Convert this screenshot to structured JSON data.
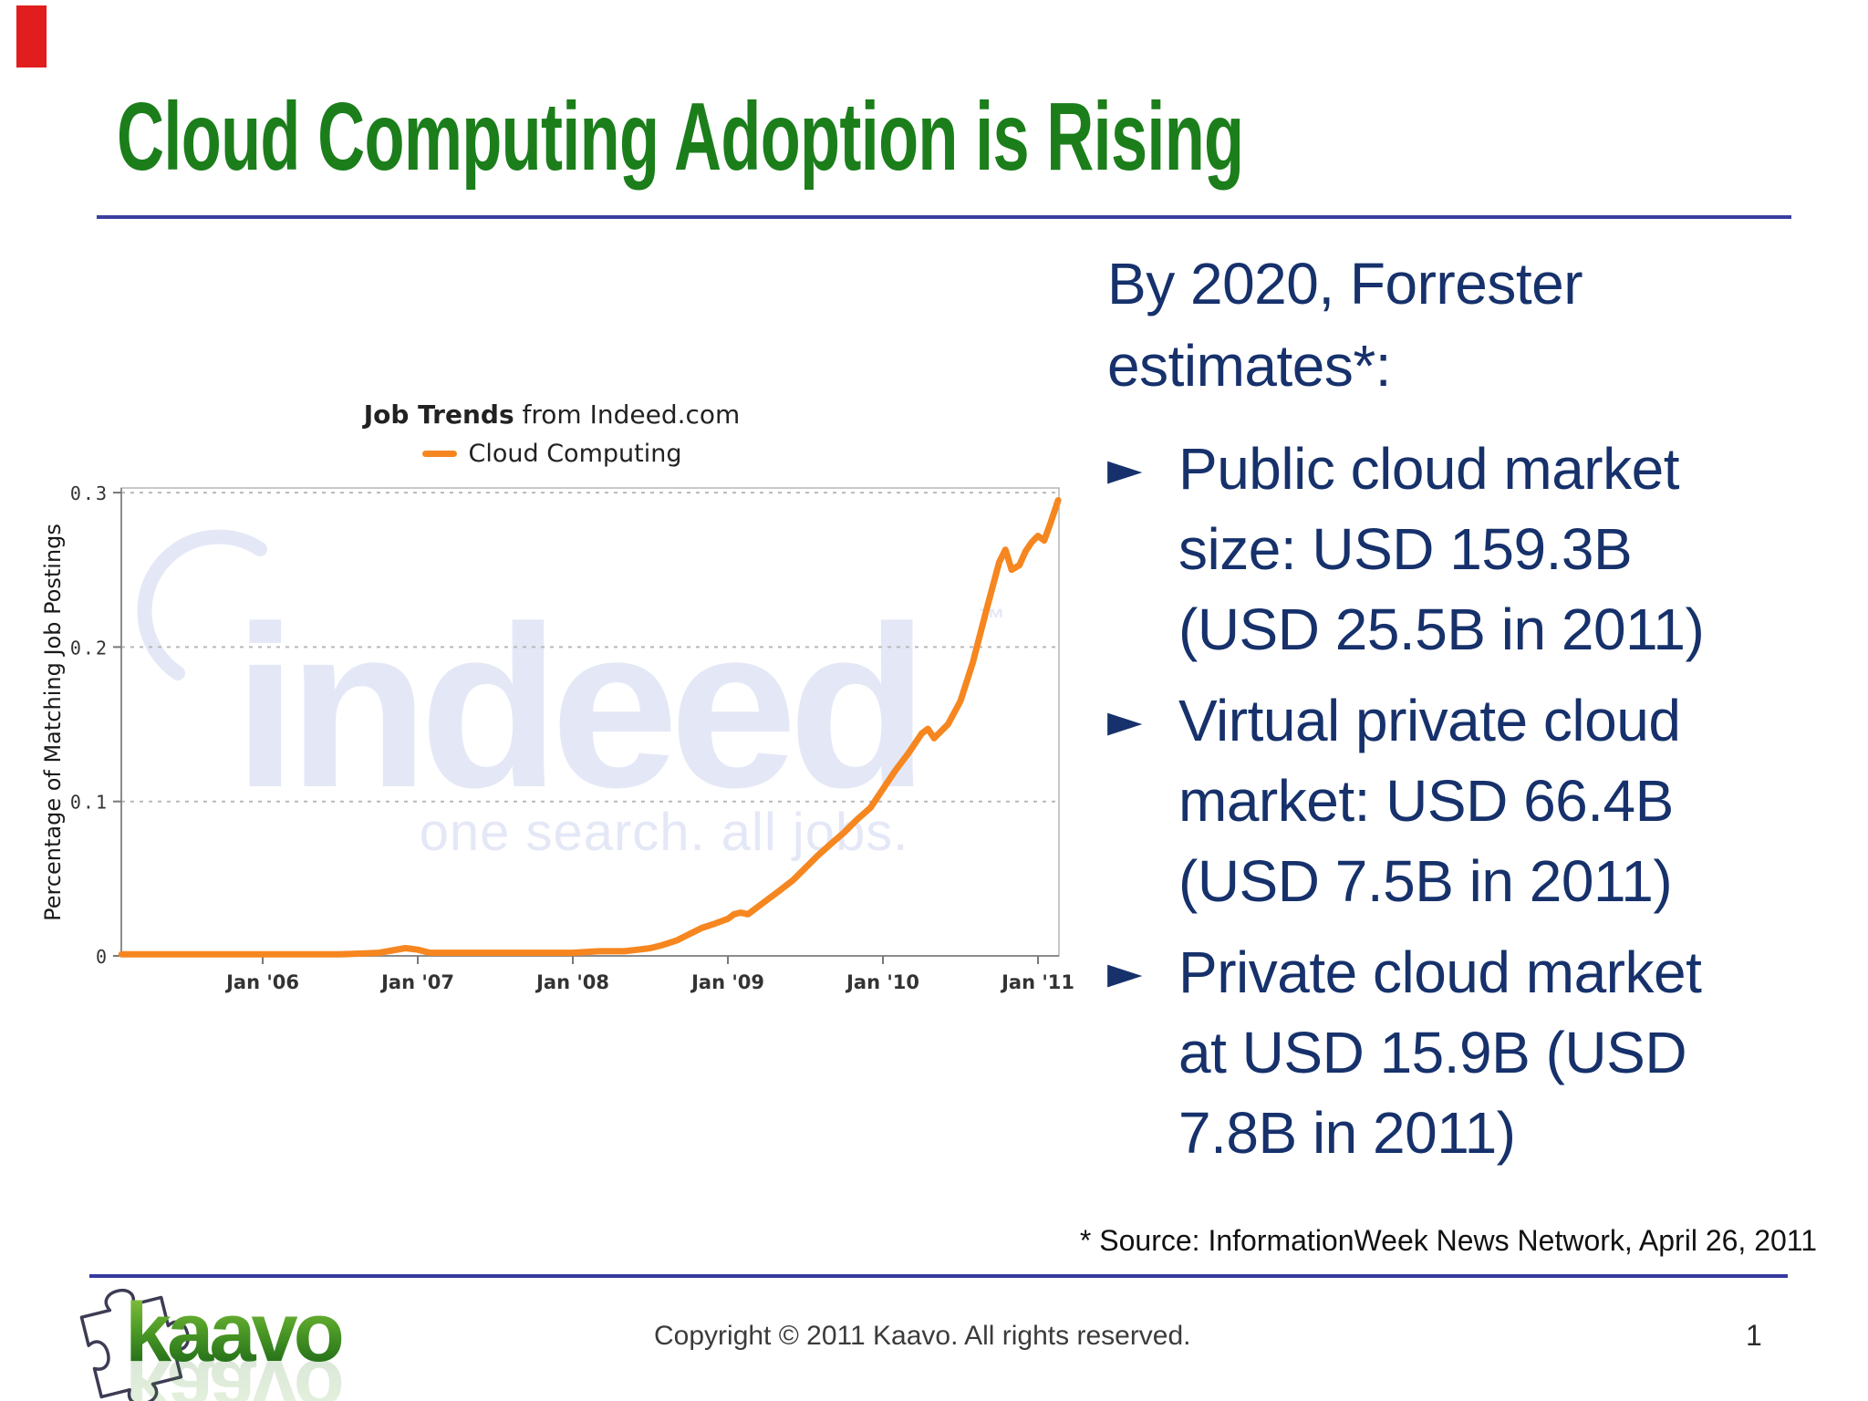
{
  "colors": {
    "title_green": "#1b7e1b",
    "navy_text": "#16316b",
    "divider_blue": "#3a3f9e",
    "accent_red": "#e11d1d",
    "line_orange": "#f6861f",
    "watermark_lavender": "#e4e8f6"
  },
  "slide": {
    "title": "Cloud Computing Adoption is Rising"
  },
  "chart_data": {
    "type": "line",
    "title_bold": "Job Trends",
    "title_suffix": " from Indeed.com",
    "legend_label": "Cloud Computing",
    "ylabel": "Percentage of Matching Job Postings",
    "xticks": [
      "Jan '06",
      "Jan '07",
      "Jan '08",
      "Jan '09",
      "Jan '10",
      "Jan '11"
    ],
    "xtick_years": [
      2006,
      2007,
      2008,
      2009,
      2010,
      2011
    ],
    "ytick_labels": [
      "0",
      "0.1",
      "0.2",
      "0.3"
    ],
    "yticks": [
      0,
      0.1,
      0.2,
      0.3
    ],
    "xlim": [
      2005.088,
      2011.135
    ],
    "ylim": [
      0,
      0.303
    ],
    "grid": "dashed-horizontal",
    "legend_position": "top-center",
    "line_color": "#f6861f",
    "watermark": {
      "text": "indeed",
      "tm": "™",
      "tagline": "one search. all jobs."
    },
    "points": [
      [
        2005.09,
        0.001
      ],
      [
        2005.25,
        0.001
      ],
      [
        2005.5,
        0.001
      ],
      [
        2005.75,
        0.001
      ],
      [
        2006.0,
        0.001
      ],
      [
        2006.25,
        0.001
      ],
      [
        2006.5,
        0.001
      ],
      [
        2006.75,
        0.002
      ],
      [
        2006.92,
        0.005
      ],
      [
        2007.0,
        0.004
      ],
      [
        2007.08,
        0.002
      ],
      [
        2007.25,
        0.002
      ],
      [
        2007.5,
        0.002
      ],
      [
        2007.75,
        0.002
      ],
      [
        2008.0,
        0.002
      ],
      [
        2008.17,
        0.003
      ],
      [
        2008.33,
        0.003
      ],
      [
        2008.42,
        0.004
      ],
      [
        2008.5,
        0.005
      ],
      [
        2008.58,
        0.007
      ],
      [
        2008.67,
        0.01
      ],
      [
        2008.75,
        0.014
      ],
      [
        2008.83,
        0.018
      ],
      [
        2008.92,
        0.021
      ],
      [
        2009.0,
        0.024
      ],
      [
        2009.04,
        0.027
      ],
      [
        2009.08,
        0.028
      ],
      [
        2009.13,
        0.027
      ],
      [
        2009.17,
        0.03
      ],
      [
        2009.25,
        0.036
      ],
      [
        2009.33,
        0.042
      ],
      [
        2009.42,
        0.049
      ],
      [
        2009.5,
        0.057
      ],
      [
        2009.58,
        0.065
      ],
      [
        2009.67,
        0.073
      ],
      [
        2009.75,
        0.08
      ],
      [
        2009.83,
        0.088
      ],
      [
        2009.92,
        0.096
      ],
      [
        2010.0,
        0.108
      ],
      [
        2010.08,
        0.12
      ],
      [
        2010.17,
        0.132
      ],
      [
        2010.25,
        0.144
      ],
      [
        2010.29,
        0.147
      ],
      [
        2010.33,
        0.141
      ],
      [
        2010.38,
        0.146
      ],
      [
        2010.42,
        0.15
      ],
      [
        2010.5,
        0.165
      ],
      [
        2010.58,
        0.19
      ],
      [
        2010.67,
        0.225
      ],
      [
        2010.75,
        0.255
      ],
      [
        2010.79,
        0.263
      ],
      [
        2010.83,
        0.25
      ],
      [
        2010.88,
        0.253
      ],
      [
        2010.92,
        0.262
      ],
      [
        2010.96,
        0.268
      ],
      [
        2011.0,
        0.272
      ],
      [
        2011.04,
        0.269
      ],
      [
        2011.08,
        0.28
      ],
      [
        2011.13,
        0.295
      ]
    ]
  },
  "right_panel": {
    "heading": "By 2020, Forrester\nestimates*:",
    "bullet_marker": "►",
    "bullets": [
      {
        "text": "Public cloud market\nsize: USD 159.3B\n(USD 25.5B in 2011)"
      },
      {
        "text": "Virtual private cloud\nmarket: USD 66.4B\n(USD 7.5B in 2011)"
      },
      {
        "text": "Private cloud market\nat USD 15.9B (USD\n7.8B in 2011)"
      }
    ],
    "source_note": "* Source: InformationWeek News Network, April 26, 2011"
  },
  "footer": {
    "logo_text": "kaavo",
    "copyright": "Copyright © 2011 Kaavo. All rights reserved.",
    "page_number": "1"
  }
}
